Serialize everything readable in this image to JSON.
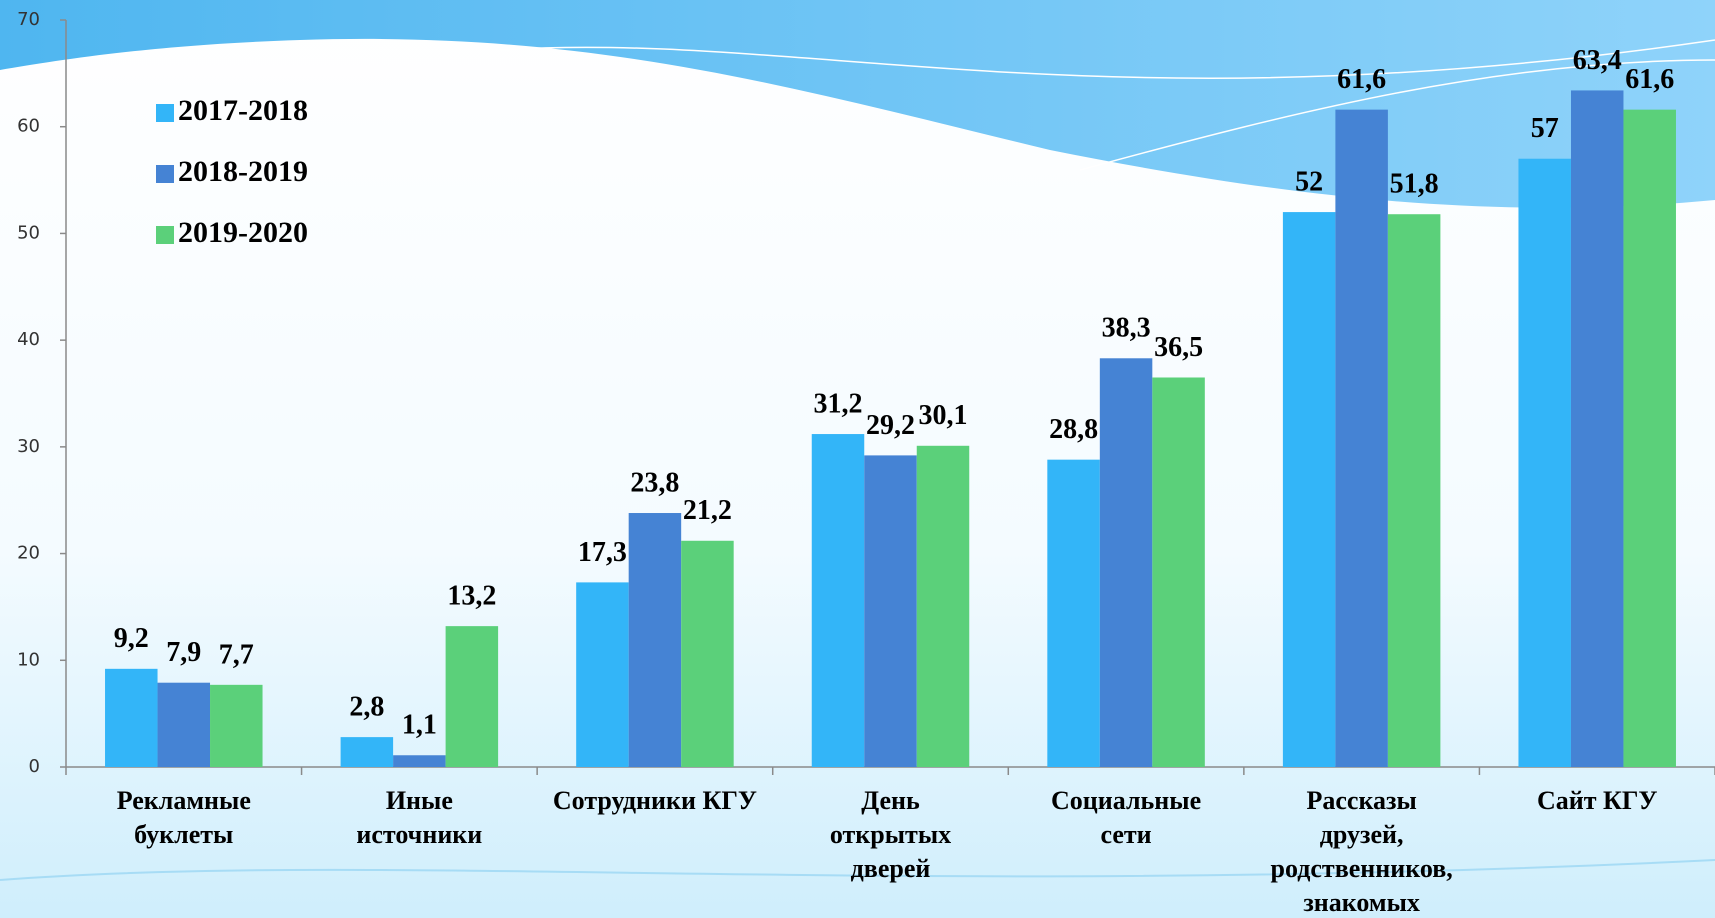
{
  "chart_data": {
    "type": "bar",
    "categories": [
      "Рекламные\nбуклеты",
      "Иные\nисточники",
      "Сотрудники КГУ",
      "День\nоткрытых\nдверей",
      "Социальные\nсети",
      "Рассказы\nдрузей,\nродственников,\nзнакомых",
      "Сайт КГУ"
    ],
    "series": [
      {
        "name": "2017-2018",
        "color": "#33b5f8",
        "values": [
          9.2,
          2.8,
          17.3,
          31.2,
          28.8,
          52,
          57
        ],
        "value_labels": [
          "9,2",
          "2,8",
          "17,3",
          "31,2",
          "28,8",
          "52",
          "57"
        ]
      },
      {
        "name": "2018-2019",
        "color": "#4583d4",
        "values": [
          7.9,
          1.1,
          23.8,
          29.2,
          38.3,
          61.6,
          63.4
        ],
        "value_labels": [
          "7,9",
          "1,1",
          "23,8",
          "29,2",
          "38,3",
          "61,6",
          "63,4"
        ]
      },
      {
        "name": "2019-2020",
        "color": "#5bd07a",
        "values": [
          7.7,
          13.2,
          21.2,
          30.1,
          36.5,
          51.8,
          61.6
        ],
        "value_labels": [
          "7,7",
          "13,2",
          "21,2",
          "30,1",
          "36,5",
          "51,8",
          "61,6"
        ]
      }
    ],
    "ylim": [
      0,
      70
    ],
    "yticks": [
      0,
      10,
      20,
      30,
      40,
      50,
      60,
      70
    ],
    "legend": "upper left"
  }
}
